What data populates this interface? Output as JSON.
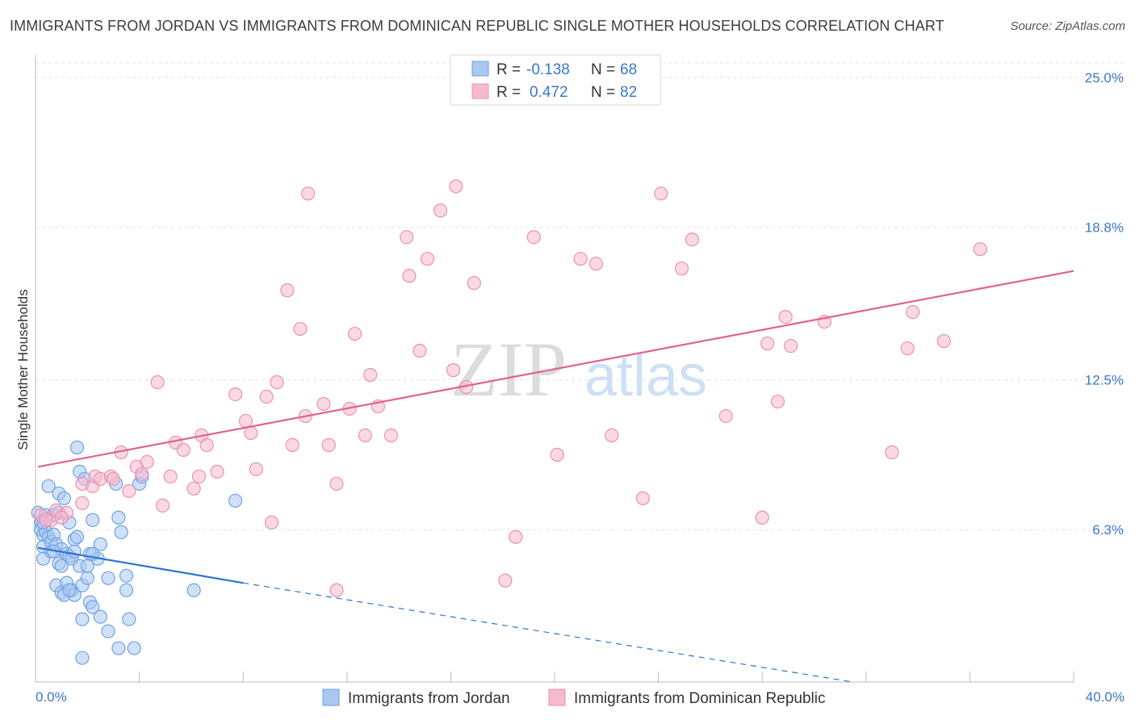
{
  "title": "IMMIGRANTS FROM JORDAN VS IMMIGRANTS FROM DOMINICAN REPUBLIC SINGLE MOTHER HOUSEHOLDS CORRELATION CHART",
  "source": "Source: ZipAtlas.com",
  "watermark": {
    "zip": "ZIP",
    "atlas": "atlas"
  },
  "legend_box": {
    "r_label": "R =",
    "n_label": "N =",
    "rows": [
      {
        "r": "-0.138",
        "n": "68",
        "color": "#aac8f0"
      },
      {
        "r": "0.472",
        "n": "82",
        "color": "#f7b9cd"
      }
    ]
  },
  "chart_data": {
    "type": "scatter",
    "title": "IMMIGRANTS FROM JORDAN VS IMMIGRANTS FROM DOMINICAN REPUBLIC SINGLE MOTHER HOUSEHOLDS CORRELATION CHART",
    "xlabel": "",
    "ylabel": "Single Mother Households",
    "xlim": [
      0,
      40
    ],
    "ylim": [
      0,
      25.6
    ],
    "x_tick_labels": [
      "0.0%",
      "40.0%"
    ],
    "y_ticks": [
      6.3,
      12.5,
      18.8,
      25.0
    ],
    "y_tick_labels": [
      "6.3%",
      "12.5%",
      "18.8%",
      "25.0%"
    ],
    "grid": true,
    "legend_position": "top-center",
    "series": [
      {
        "name": "Immigrants from Jordan",
        "color": "#6fa1e3",
        "fill": "#aac8f0",
        "line_color": "#2f74d0",
        "trend": {
          "x0": 0.1,
          "y0": 5.55,
          "x1": 8.0,
          "y1": 4.1,
          "dash_to_x": 31.5,
          "dash_to_y": 0.0
        },
        "points": [
          [
            0.1,
            7.0
          ],
          [
            0.2,
            6.6
          ],
          [
            0.2,
            6.3
          ],
          [
            0.3,
            6.1
          ],
          [
            0.3,
            5.6
          ],
          [
            0.3,
            5.1
          ],
          [
            0.4,
            6.2
          ],
          [
            0.4,
            6.9
          ],
          [
            0.5,
            8.1
          ],
          [
            0.5,
            6.0
          ],
          [
            0.6,
            5.4
          ],
          [
            0.6,
            5.8
          ],
          [
            0.7,
            6.1
          ],
          [
            0.7,
            6.9
          ],
          [
            0.8,
            5.7
          ],
          [
            0.8,
            4.0
          ],
          [
            0.9,
            7.8
          ],
          [
            0.9,
            7.0
          ],
          [
            0.9,
            4.9
          ],
          [
            1.0,
            3.7
          ],
          [
            1.0,
            5.5
          ],
          [
            1.0,
            4.8
          ],
          [
            1.1,
            3.6
          ],
          [
            1.1,
            7.6
          ],
          [
            1.2,
            5.3
          ],
          [
            1.2,
            4.1
          ],
          [
            1.3,
            5.2
          ],
          [
            1.3,
            6.6
          ],
          [
            1.4,
            5.1
          ],
          [
            1.4,
            3.8
          ],
          [
            1.5,
            5.4
          ],
          [
            1.5,
            3.6
          ],
          [
            1.5,
            5.9
          ],
          [
            1.6,
            6.0
          ],
          [
            1.6,
            9.7
          ],
          [
            1.7,
            8.7
          ],
          [
            1.7,
            4.8
          ],
          [
            1.8,
            4.0
          ],
          [
            1.8,
            2.6
          ],
          [
            1.8,
            1.0
          ],
          [
            1.9,
            8.4
          ],
          [
            2.0,
            4.3
          ],
          [
            2.0,
            4.8
          ],
          [
            2.1,
            3.3
          ],
          [
            2.1,
            5.3
          ],
          [
            2.2,
            3.1
          ],
          [
            2.2,
            6.7
          ],
          [
            2.4,
            5.1
          ],
          [
            2.5,
            2.7
          ],
          [
            2.5,
            5.7
          ],
          [
            2.8,
            4.3
          ],
          [
            2.8,
            2.1
          ],
          [
            3.1,
            8.2
          ],
          [
            3.2,
            6.8
          ],
          [
            3.3,
            6.2
          ],
          [
            3.2,
            1.4
          ],
          [
            3.5,
            3.8
          ],
          [
            3.5,
            4.4
          ],
          [
            3.6,
            2.6
          ],
          [
            3.8,
            1.4
          ],
          [
            4.0,
            8.2
          ],
          [
            4.1,
            8.5
          ],
          [
            6.1,
            3.8
          ],
          [
            7.7,
            7.5
          ],
          [
            0.3,
            6.6
          ],
          [
            0.7,
            5.4
          ],
          [
            1.3,
            3.8
          ],
          [
            2.2,
            5.3
          ]
        ]
      },
      {
        "name": "Immigrants from Dominican Republic",
        "color": "#ec8fb0",
        "fill": "#f7b9cd",
        "line_color": "#e0628f",
        "trend": {
          "x0": 0.1,
          "y0": 8.9,
          "x1": 40.0,
          "y1": 17.0
        },
        "points": [
          [
            0.2,
            6.9
          ],
          [
            0.6,
            6.7
          ],
          [
            0.8,
            7.1
          ],
          [
            1.2,
            7.0
          ],
          [
            1.8,
            8.2
          ],
          [
            1.8,
            7.4
          ],
          [
            2.2,
            8.1
          ],
          [
            2.3,
            8.5
          ],
          [
            2.5,
            8.4
          ],
          [
            2.9,
            8.5
          ],
          [
            3.0,
            8.4
          ],
          [
            3.3,
            9.5
          ],
          [
            3.6,
            7.9
          ],
          [
            3.9,
            8.9
          ],
          [
            4.1,
            8.6
          ],
          [
            4.3,
            9.1
          ],
          [
            4.7,
            12.4
          ],
          [
            4.9,
            7.3
          ],
          [
            5.2,
            8.5
          ],
          [
            5.4,
            9.9
          ],
          [
            5.7,
            9.6
          ],
          [
            6.1,
            8.0
          ],
          [
            6.3,
            8.5
          ],
          [
            6.4,
            10.2
          ],
          [
            6.6,
            9.8
          ],
          [
            7.0,
            8.7
          ],
          [
            7.7,
            11.9
          ],
          [
            8.1,
            10.8
          ],
          [
            8.3,
            10.3
          ],
          [
            8.5,
            8.8
          ],
          [
            8.9,
            11.8
          ],
          [
            9.1,
            6.6
          ],
          [
            9.3,
            12.4
          ],
          [
            9.7,
            16.2
          ],
          [
            9.9,
            9.8
          ],
          [
            10.2,
            14.6
          ],
          [
            10.4,
            11.0
          ],
          [
            10.5,
            20.2
          ],
          [
            11.1,
            11.5
          ],
          [
            11.3,
            9.8
          ],
          [
            11.6,
            8.2
          ],
          [
            11.6,
            3.8
          ],
          [
            12.1,
            11.3
          ],
          [
            12.3,
            14.4
          ],
          [
            12.7,
            10.2
          ],
          [
            12.9,
            12.7
          ],
          [
            13.2,
            11.4
          ],
          [
            13.7,
            10.2
          ],
          [
            14.3,
            18.4
          ],
          [
            14.4,
            16.8
          ],
          [
            14.8,
            13.7
          ],
          [
            15.1,
            17.5
          ],
          [
            15.6,
            19.5
          ],
          [
            16.1,
            12.9
          ],
          [
            16.2,
            20.5
          ],
          [
            16.6,
            12.2
          ],
          [
            16.9,
            16.5
          ],
          [
            18.1,
            4.2
          ],
          [
            18.5,
            6.0
          ],
          [
            19.2,
            18.4
          ],
          [
            20.1,
            9.4
          ],
          [
            21.0,
            17.5
          ],
          [
            21.6,
            17.3
          ],
          [
            22.2,
            10.2
          ],
          [
            23.4,
            7.6
          ],
          [
            24.1,
            20.2
          ],
          [
            24.9,
            17.1
          ],
          [
            25.3,
            18.3
          ],
          [
            26.6,
            11.0
          ],
          [
            28.0,
            6.8
          ],
          [
            28.2,
            14.0
          ],
          [
            28.6,
            11.6
          ],
          [
            28.9,
            15.1
          ],
          [
            29.1,
            13.9
          ],
          [
            30.4,
            14.9
          ],
          [
            33.0,
            9.5
          ],
          [
            33.6,
            13.8
          ],
          [
            33.8,
            15.3
          ],
          [
            35.0,
            14.1
          ],
          [
            36.4,
            17.9
          ],
          [
            0.4,
            6.7
          ],
          [
            1.0,
            6.8
          ]
        ]
      }
    ]
  },
  "bottom_legend": [
    {
      "label": "Immigrants from Jordan",
      "color": "#aac8f0"
    },
    {
      "label": "Immigrants from Dominican Republic",
      "color": "#f7b9cd"
    }
  ]
}
